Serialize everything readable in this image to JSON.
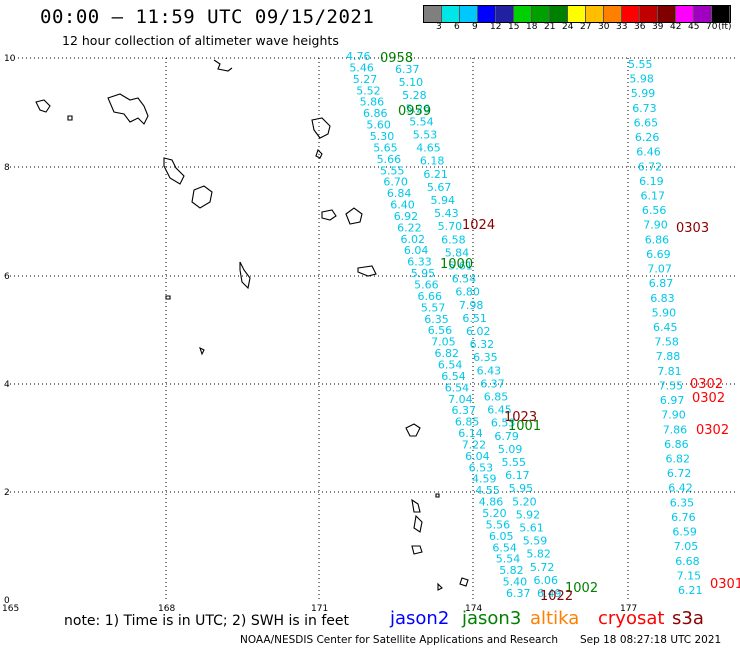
{
  "header": {
    "title": "00:00 – 11:59 UTC 09/15/2021",
    "subtitle": "12 hour collection of altimeter wave heights"
  },
  "color_scale": {
    "colors": [
      "#7f7f7f",
      "#00e5e5",
      "#00c8ff",
      "#0000ff",
      "#2020a0",
      "#00d000",
      "#00a000",
      "#008000",
      "#ffff00",
      "#ffbf00",
      "#ff8000",
      "#ff0000",
      "#c00000",
      "#800000",
      "#ff00ff",
      "#a000c0",
      "#000000"
    ],
    "labels": [
      "3",
      "6",
      "9",
      "12",
      "15",
      "18",
      "21",
      "24",
      "27",
      "30",
      "33",
      "36",
      "39",
      "42",
      "45",
      "70"
    ],
    "unit": "(ft)"
  },
  "axes": {
    "y_ticks": [
      "10",
      "8",
      "6",
      "4",
      "2",
      "0"
    ],
    "x_ticks": [
      "165",
      "168",
      "171",
      "174",
      "177"
    ]
  },
  "tracks": {
    "track1_values": [
      "4.76",
      "5.46",
      "5.27",
      "5.52",
      "5.86",
      "6.86",
      "5.60",
      "5.30",
      "5.65",
      "5.66",
      "5.55",
      "6.70",
      "6.84",
      "6.40",
      "6.92",
      "6.22",
      "6.02",
      "6.04",
      "6.33",
      "5.95",
      "5.66",
      "6.66",
      "5.57",
      "6.35",
      "6.56",
      "7.05",
      "6.82",
      "6.54",
      "6.54",
      "6.54",
      "7.04",
      "6.37",
      "6.85",
      "6.14",
      "7.22",
      "6.04",
      "6.53",
      "4.59",
      "4.55",
      "4.86",
      "5.20",
      "5.56",
      "6.05",
      "6.54",
      "5.54",
      "5.82",
      "5.40",
      "6.37"
    ],
    "track2_values": [
      "6.37",
      "5.10",
      "5.28",
      "5.26",
      "5.54",
      "5.53",
      "4.65",
      "6.18",
      "6.21",
      "5.67",
      "5.94",
      "5.43",
      "5.70",
      "6.58",
      "5.84",
      "5.61",
      "6.54",
      "6.80",
      "7.98",
      "6.51",
      "6.02",
      "6.32",
      "6.35",
      "6.43",
      "6.37",
      "6.85",
      "6.45",
      "6.53",
      "6.79",
      "5.09",
      "5.55",
      "6.17",
      "5.95",
      "5.20",
      "5.92",
      "5.61",
      "5.59",
      "5.82",
      "5.72",
      "6.06",
      "6.49"
    ],
    "track3_values": [
      "5.55",
      "5.98",
      "5.99",
      "6.73",
      "6.65",
      "6.26",
      "6.46",
      "6.72",
      "6.19",
      "6.17",
      "6.56",
      "7.90",
      "6.86",
      "6.69",
      "7.07",
      "6.87",
      "6.83",
      "5.90",
      "6.45",
      "7.58",
      "7.88",
      "7.81",
      "7.55",
      "6.97",
      "7.90",
      "7.86",
      "6.86",
      "6.82",
      "6.72",
      "6.42",
      "6.35",
      "6.76",
      "6.59",
      "7.05",
      "6.68",
      "7.15",
      "6.21"
    ],
    "time_labels": [
      {
        "text": "0958",
        "color": "#008000"
      },
      {
        "text": "0959",
        "color": "#008000"
      },
      {
        "text": "1024",
        "color": "#8b0000"
      },
      {
        "text": "1000",
        "color": "#008000"
      },
      {
        "text": "1023",
        "color": "#8b0000"
      },
      {
        "text": "1001",
        "color": "#008000"
      },
      {
        "text": "1002",
        "color": "#008000"
      },
      {
        "text": "1022",
        "color": "#8b0000"
      },
      {
        "text": "0303",
        "color": "#8b0000"
      },
      {
        "text": "0302",
        "color": "#ff0000"
      },
      {
        "text": "0302",
        "color": "#ff0000"
      },
      {
        "text": "0302",
        "color": "#ff0000"
      },
      {
        "text": "0301",
        "color": "#ff0000"
      }
    ]
  },
  "footer": {
    "note": "note: 1) Time is in UTC; 2) SWH is in feet",
    "legend": [
      {
        "label": "jason2",
        "color": "#0000ff"
      },
      {
        "label": "jason3",
        "color": "#008000"
      },
      {
        "label": "altika",
        "color": "#ff8000"
      },
      {
        "label": "cryosat",
        "color": "#ff0000"
      },
      {
        "label": "s3a",
        "color": "#8b0000"
      }
    ],
    "credit": "NOAA/NESDIS Center for Satellite Applications and Research",
    "timestamp": "Sep 18 08:27:18 UTC 2021"
  }
}
